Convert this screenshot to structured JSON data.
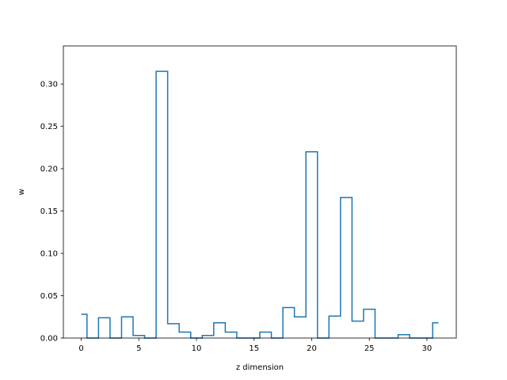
{
  "chart_data": {
    "type": "line",
    "drawstyle": "steps-mid",
    "title": "",
    "xlabel": "z dimension",
    "ylabel": "w",
    "xlim": [
      -1.55,
      32.55
    ],
    "ylim": [
      0,
      0.345
    ],
    "grid": false,
    "legend": "none",
    "line_color": "#1f77b4",
    "x": [
      0,
      1,
      2,
      3,
      4,
      5,
      6,
      7,
      8,
      9,
      10,
      11,
      12,
      13,
      14,
      15,
      16,
      17,
      18,
      19,
      20,
      21,
      22,
      23,
      24,
      25,
      26,
      27,
      28,
      29,
      30,
      31
    ],
    "y": [
      0.028,
      0.0,
      0.024,
      0.0,
      0.025,
      0.003,
      0.0,
      0.315,
      0.017,
      0.007,
      0.0,
      0.003,
      0.018,
      0.007,
      0.0,
      0.0,
      0.007,
      0.0,
      0.036,
      0.025,
      0.22,
      0.0,
      0.026,
      0.166,
      0.02,
      0.034,
      0.0,
      0.0,
      0.004,
      0.0,
      0.0,
      0.018
    ],
    "x_ticks": [
      0,
      5,
      10,
      15,
      20,
      25,
      30
    ],
    "x_tick_labels": [
      "0",
      "5",
      "10",
      "15",
      "20",
      "25",
      "30"
    ],
    "y_ticks": [
      0,
      0.05,
      0.1,
      0.15,
      0.2,
      0.25,
      0.3
    ],
    "y_tick_labels": [
      "0.00",
      "0.05",
      "0.10",
      "0.15",
      "0.20",
      "0.25",
      "0.30"
    ]
  }
}
